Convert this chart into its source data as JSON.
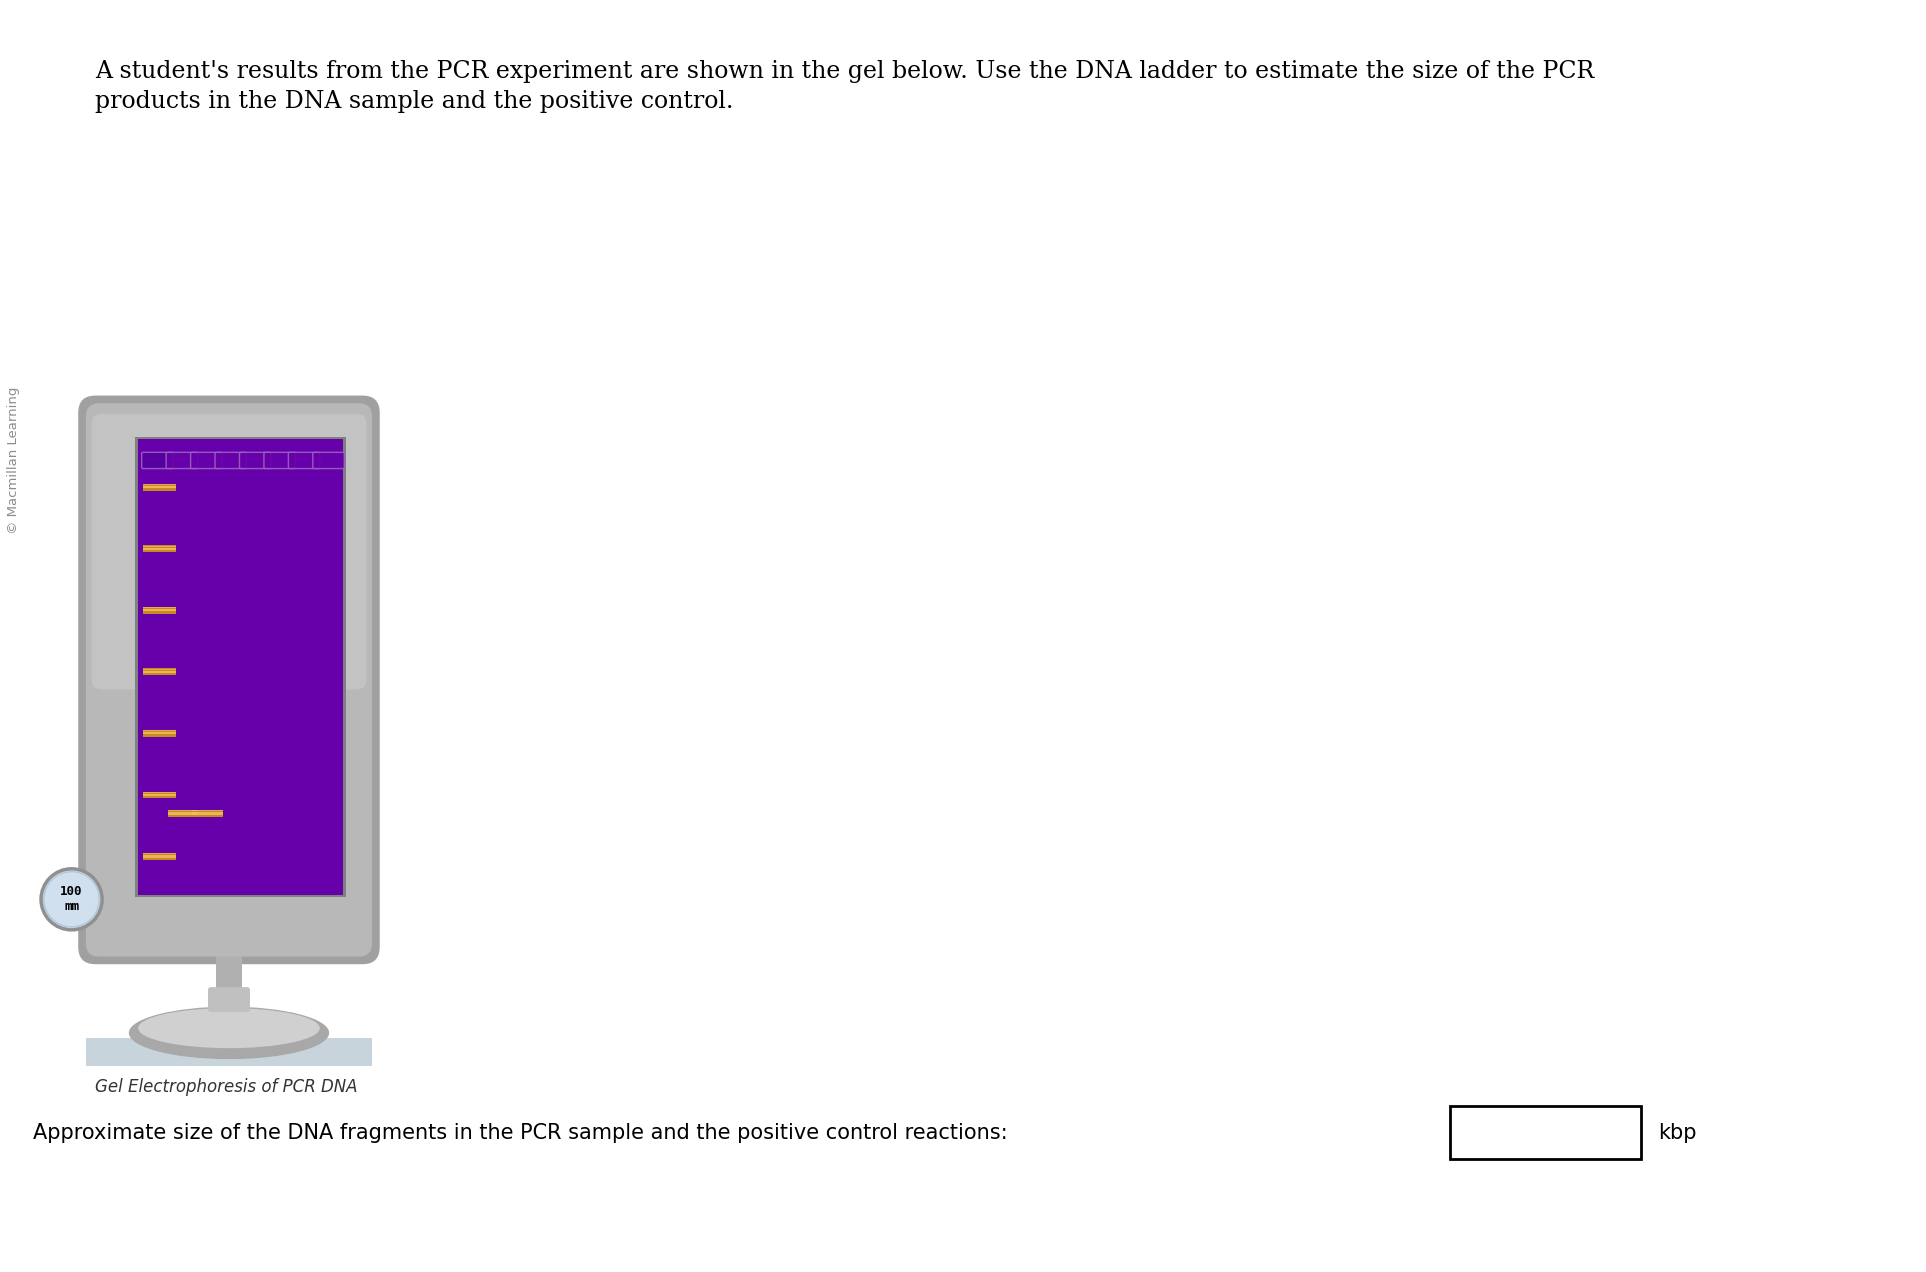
{
  "title_text": "A student's results from the PCR experiment are shown in the gel below. Use the DNA ladder to estimate the size of the PCR\nproducts in the DNA sample and the positive control.",
  "watermark": "© Macmillan Learning",
  "caption": "Gel Electrophoresis of PCR DNA",
  "bottom_label": "Approximate size of the DNA fragments in the PCR sample and the positive control reactions:",
  "bottom_unit": "kbp",
  "gel_bg": "#6600AA",
  "band_color": "#E8A840",
  "ruler_label": "100\nmm",
  "monitor_frame_color": "#B8B8B8",
  "monitor_highlight_color": "#D5D5D5",
  "monitor_shadow_color": "#989898",
  "screen_border_color": "#888888",
  "ruler_bg": "#D0E0EE",
  "ruler_border": "#909090",
  "base_platform_color": "#C8D4DC",
  "neck_color": "#B0B0B0",
  "stand_color": "#C0C0C0"
}
